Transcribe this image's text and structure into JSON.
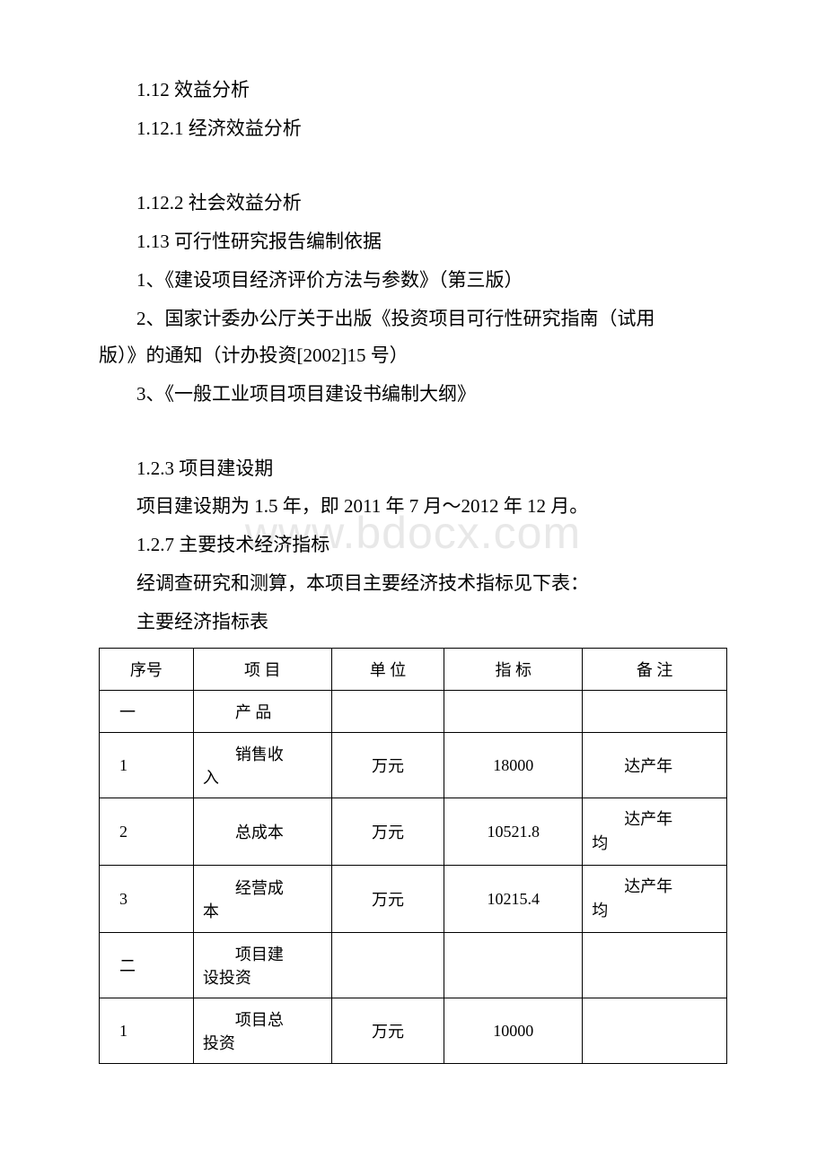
{
  "watermark": "www.bdocx.com",
  "paragraphs": {
    "p1": "1.12 效益分析",
    "p2": "1.12.1 经济效益分析",
    "p3": "1.12.2 社会效益分析",
    "p4": "1.13 可行性研究报告编制依据",
    "p5": "1、《建设项目经济评价方法与参数》（第三版）",
    "p6a": "2、国家计委办公厅关于出版《投资项目可行性研究指南（试用",
    "p6b": "版）》的通知（计办投资[2002]15 号）",
    "p7": "3、《一般工业项目项目建设书编制大纲》",
    "p8": "1.2.3 项目建设期",
    "p9": "项目建设期为 1.5 年，即 2011 年 7 月～2012 年 12 月。",
    "p10": "1.2.7 主要技术经济指标",
    "p11": "经调查研究和测算，本项目主要经济技术指标见下表：",
    "p12": "主要经济指标表"
  },
  "table": {
    "header": {
      "c1": "序号",
      "c2": "项 目",
      "c3": "单 位",
      "c4": "指 标",
      "c5": "备 注"
    },
    "rows": [
      {
        "c1": "一",
        "c2_l1": "产 品",
        "c2_l2": "",
        "c3": "",
        "c4": "",
        "c5_l1": "",
        "c5_l2": ""
      },
      {
        "c1": "1",
        "c2_l1": "销售收",
        "c2_l2": "入",
        "c3": "万元",
        "c4": "18000",
        "c5_l1": "达产年",
        "c5_l2": ""
      },
      {
        "c1": "2",
        "c2_l1": "总成本",
        "c2_l2": "",
        "c3": "万元",
        "c4": "10521.8",
        "c5_l1": "达产年",
        "c5_l2": "均"
      },
      {
        "c1": "3",
        "c2_l1": "经营成",
        "c2_l2": "本",
        "c3": "万元",
        "c4": "10215.4",
        "c5_l1": "达产年",
        "c5_l2": "均"
      },
      {
        "c1": "二",
        "c2_l1": "项目建",
        "c2_l2": "设投资",
        "c3": "",
        "c4": "",
        "c5_l1": "",
        "c5_l2": ""
      },
      {
        "c1": "1",
        "c2_l1": "项目总",
        "c2_l2": "投资",
        "c3": "万元",
        "c4": "10000",
        "c5_l1": "",
        "c5_l2": ""
      }
    ],
    "styles": {
      "border_color": "#000000",
      "font_size_body": 18,
      "font_size_para": 21,
      "background_color": "#ffffff",
      "text_color": "#000000",
      "watermark_color": "#e8e8e8"
    }
  }
}
